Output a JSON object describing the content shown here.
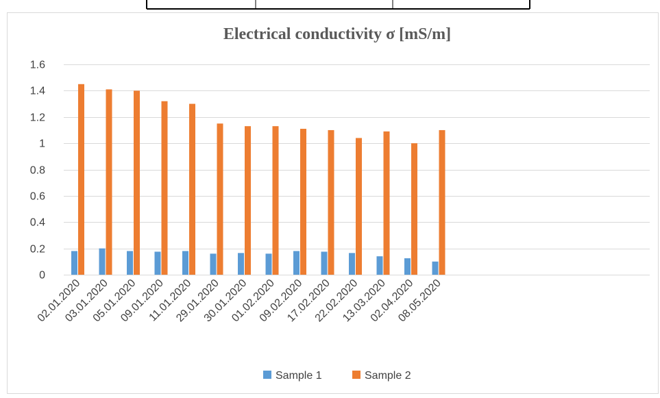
{
  "chart_data": {
    "type": "bar",
    "title": "Electrical conductivity σ [mS/m]",
    "xlabel": "",
    "ylabel": "",
    "ylim": [
      0,
      1.6
    ],
    "yticks": [
      "0",
      "0.2",
      "0.4",
      "0.6",
      "0.8",
      "1",
      "1.2",
      "1.4",
      "1.6"
    ],
    "grid": true,
    "legend_position": "bottom",
    "categories": [
      "02.01.2020",
      "03.01.2020",
      "05.01.2020",
      "09.01.2020",
      "11.01.2020",
      "29.01.2020",
      "30.01.2020",
      "01.02.2020",
      "09.02.2020",
      "17.02.2020",
      "22.02.2020",
      "13.03.2020",
      "02.04.2020",
      "08.05.2020"
    ],
    "series": [
      {
        "name": "Sample 1",
        "color": "#5B9BD5",
        "values": [
          0.18,
          0.2,
          0.18,
          0.175,
          0.18,
          0.16,
          0.165,
          0.16,
          0.18,
          0.175,
          0.165,
          0.14,
          0.125,
          0.1
        ]
      },
      {
        "name": "Sample 2",
        "color": "#ED7D31",
        "values": [
          1.45,
          1.41,
          1.4,
          1.32,
          1.3,
          1.15,
          1.13,
          1.13,
          1.11,
          1.1,
          1.04,
          1.09,
          1.0,
          1.1
        ]
      }
    ]
  }
}
